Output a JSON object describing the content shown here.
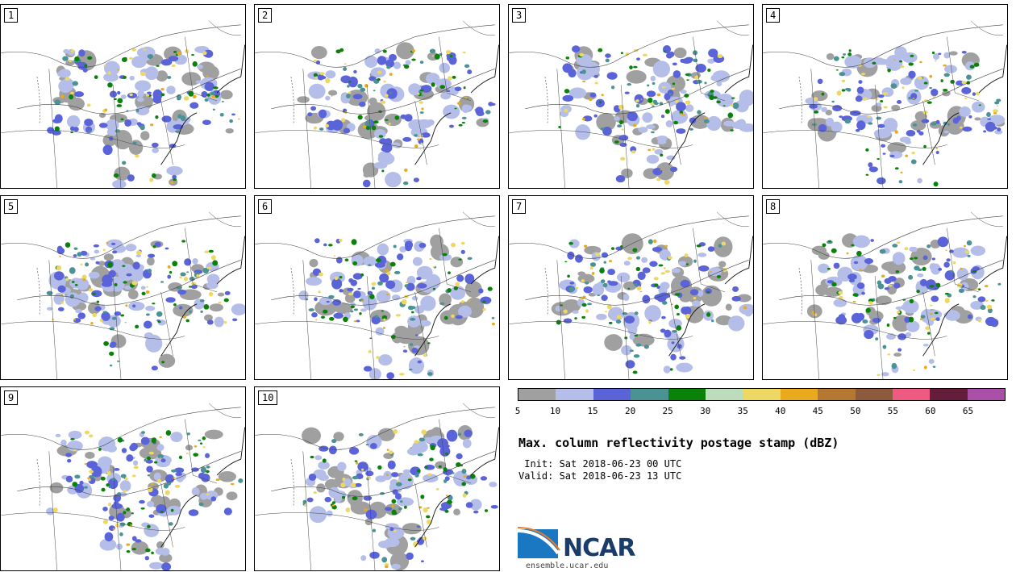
{
  "title": "Max. column reflectivity postage stamp (dBZ)",
  "init_line": " Init: Sat 2018-06-23 00 UTC",
  "valid_line": "Valid: Sat 2018-06-23 13 UTC",
  "logo_text": "NCAR",
  "logo_url": "ensemble.ucar.edu",
  "panels": [
    {
      "label": "1"
    },
    {
      "label": "2"
    },
    {
      "label": "3"
    },
    {
      "label": "4"
    },
    {
      "label": "5"
    },
    {
      "label": "6"
    },
    {
      "label": "7"
    },
    {
      "label": "8"
    },
    {
      "label": "9"
    },
    {
      "label": "10"
    }
  ],
  "colorbar": {
    "colors": [
      "#a0a0a0",
      "#b4bee8",
      "#5a64d8",
      "#4a9294",
      "#0a820a",
      "#bcdcbc",
      "#eed864",
      "#eaaa1e",
      "#b47832",
      "#8c5a3c",
      "#ee5a82",
      "#641e3c",
      "#aa50a8"
    ],
    "ticks": [
      "5",
      "10",
      "15",
      "20",
      "25",
      "30",
      "35",
      "40",
      "45",
      "50",
      "55",
      "60",
      "65"
    ]
  }
}
